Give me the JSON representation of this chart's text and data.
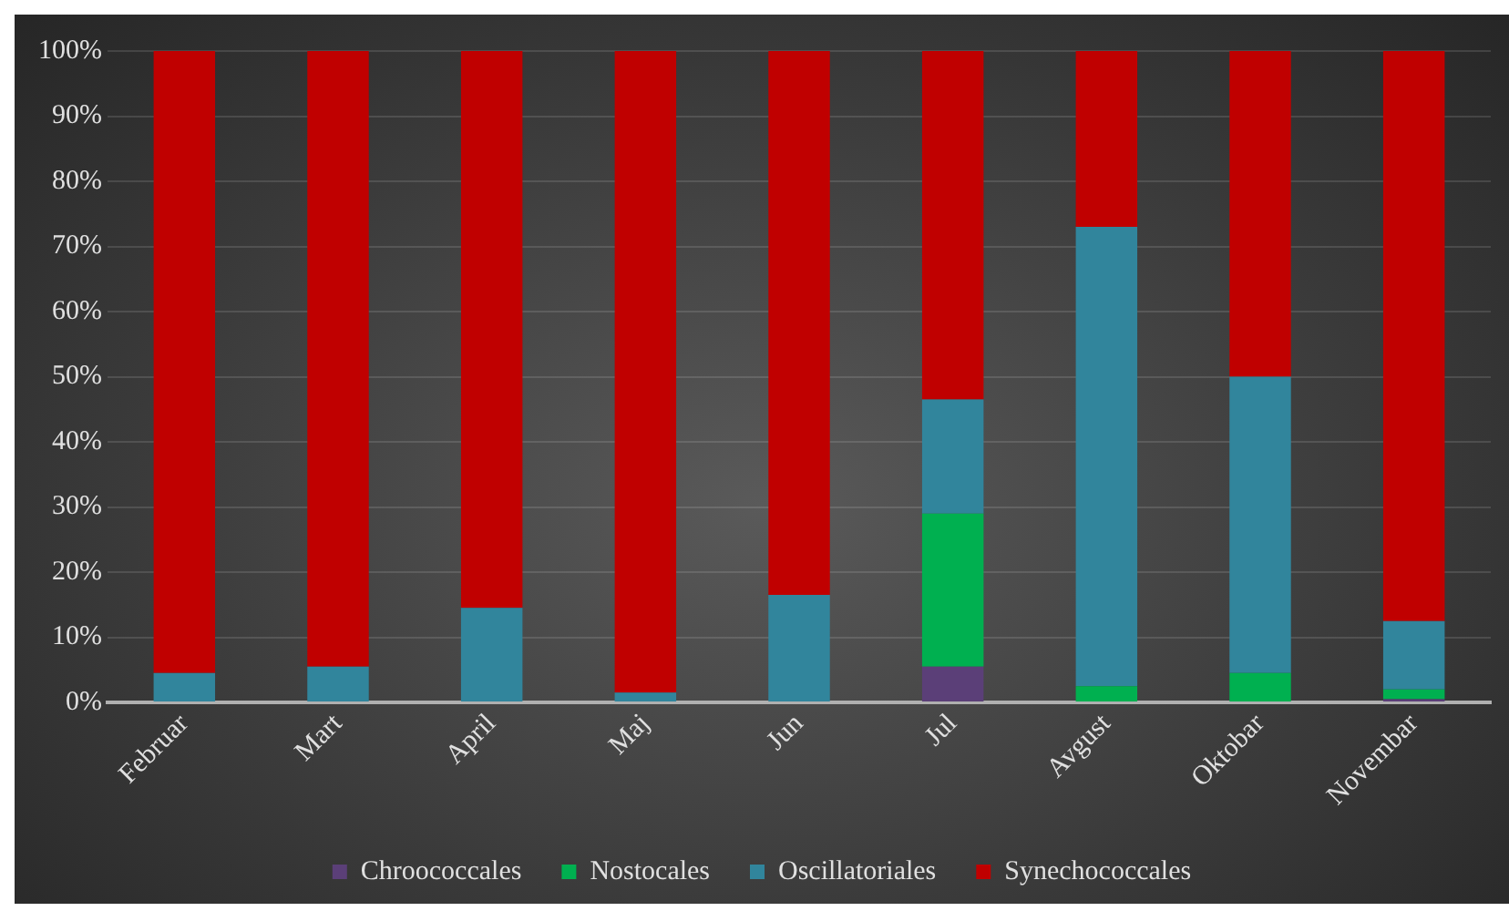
{
  "chart_data": {
    "type": "bar",
    "stacked": true,
    "categories": [
      "Februar",
      "Mart",
      "April",
      "Maj",
      "Jun",
      "Jul",
      "Avgust",
      "Oktobar",
      "Novembar"
    ],
    "series": [
      {
        "name": "Chroococcales",
        "color": "#5b3f78",
        "values": [
          0,
          0,
          0,
          0,
          0,
          5.5,
          0,
          0,
          0.5
        ]
      },
      {
        "name": "Nostocales",
        "color": "#00b050",
        "values": [
          0,
          0,
          0,
          0,
          0,
          23.5,
          2.5,
          4.5,
          1.5
        ]
      },
      {
        "name": "Oscillatoriales",
        "color": "#31859c",
        "values": [
          4.5,
          5.5,
          14.5,
          1.5,
          16.5,
          17.5,
          70.5,
          45.5,
          10.5
        ]
      },
      {
        "name": "Synechococcales",
        "color": "#c00000",
        "values": [
          95.5,
          94.5,
          85.5,
          98.5,
          83.5,
          53.5,
          27,
          50,
          87.5
        ]
      }
    ],
    "ylim": [
      0,
      100
    ],
    "yticks": [
      {
        "value": 0,
        "label": "0%"
      },
      {
        "value": 10,
        "label": "10%"
      },
      {
        "value": 20,
        "label": "20%"
      },
      {
        "value": 30,
        "label": "30%"
      },
      {
        "value": 40,
        "label": "40%"
      },
      {
        "value": 50,
        "label": "50%"
      },
      {
        "value": 60,
        "label": "60%"
      },
      {
        "value": 70,
        "label": "70%"
      },
      {
        "value": 80,
        "label": "80%"
      },
      {
        "value": 90,
        "label": "90%"
      },
      {
        "value": 100,
        "label": "100%"
      }
    ],
    "grid": "y",
    "legend": "bottom"
  }
}
